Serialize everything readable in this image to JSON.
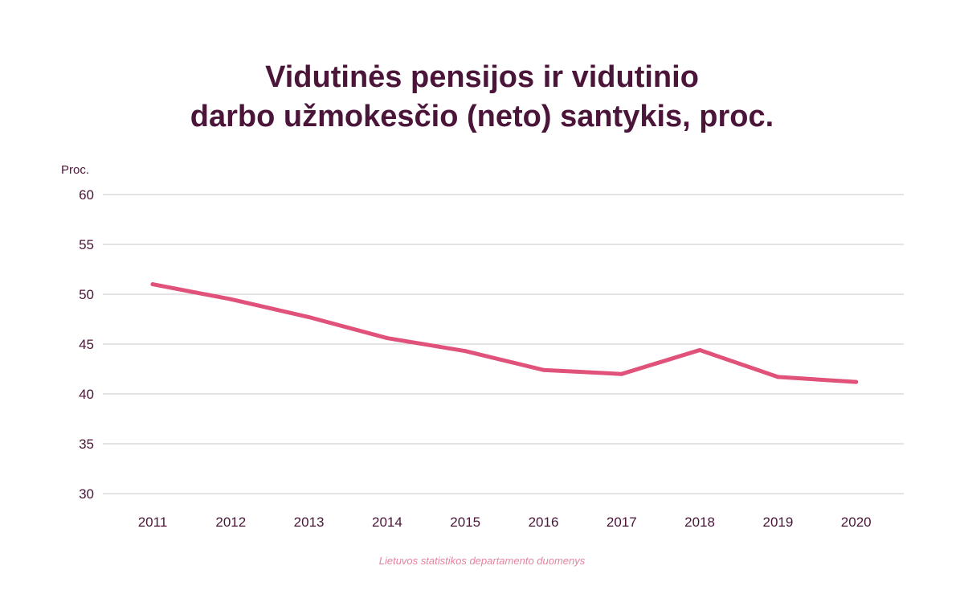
{
  "colors": {
    "title": "#4a1538",
    "text": "#4a1538",
    "line": "#e05279",
    "grid": "#c8c8c8",
    "source": "#e8829e"
  },
  "chart_data": {
    "type": "line",
    "title_lines": [
      "Vidutinės pensijos ir vidutinio",
      "darbo užmokesčio (neto) santykis, proc."
    ],
    "ylabel": "Proc.",
    "xlabel": "",
    "categories": [
      "2011",
      "2012",
      "2013",
      "2014",
      "2015",
      "2016",
      "2017",
      "2018",
      "2019",
      "2020"
    ],
    "series": [
      {
        "values": [
          51.0,
          49.5,
          47.7,
          45.6,
          44.3,
          42.4,
          42.0,
          44.4,
          41.7,
          41.2
        ]
      }
    ],
    "ylim": [
      30,
      60
    ],
    "yticks": [
      30,
      35,
      40,
      45,
      50,
      55,
      60
    ],
    "grid": true,
    "legend": "none",
    "source": "Lietuvos statistikos departamento duomenys"
  }
}
